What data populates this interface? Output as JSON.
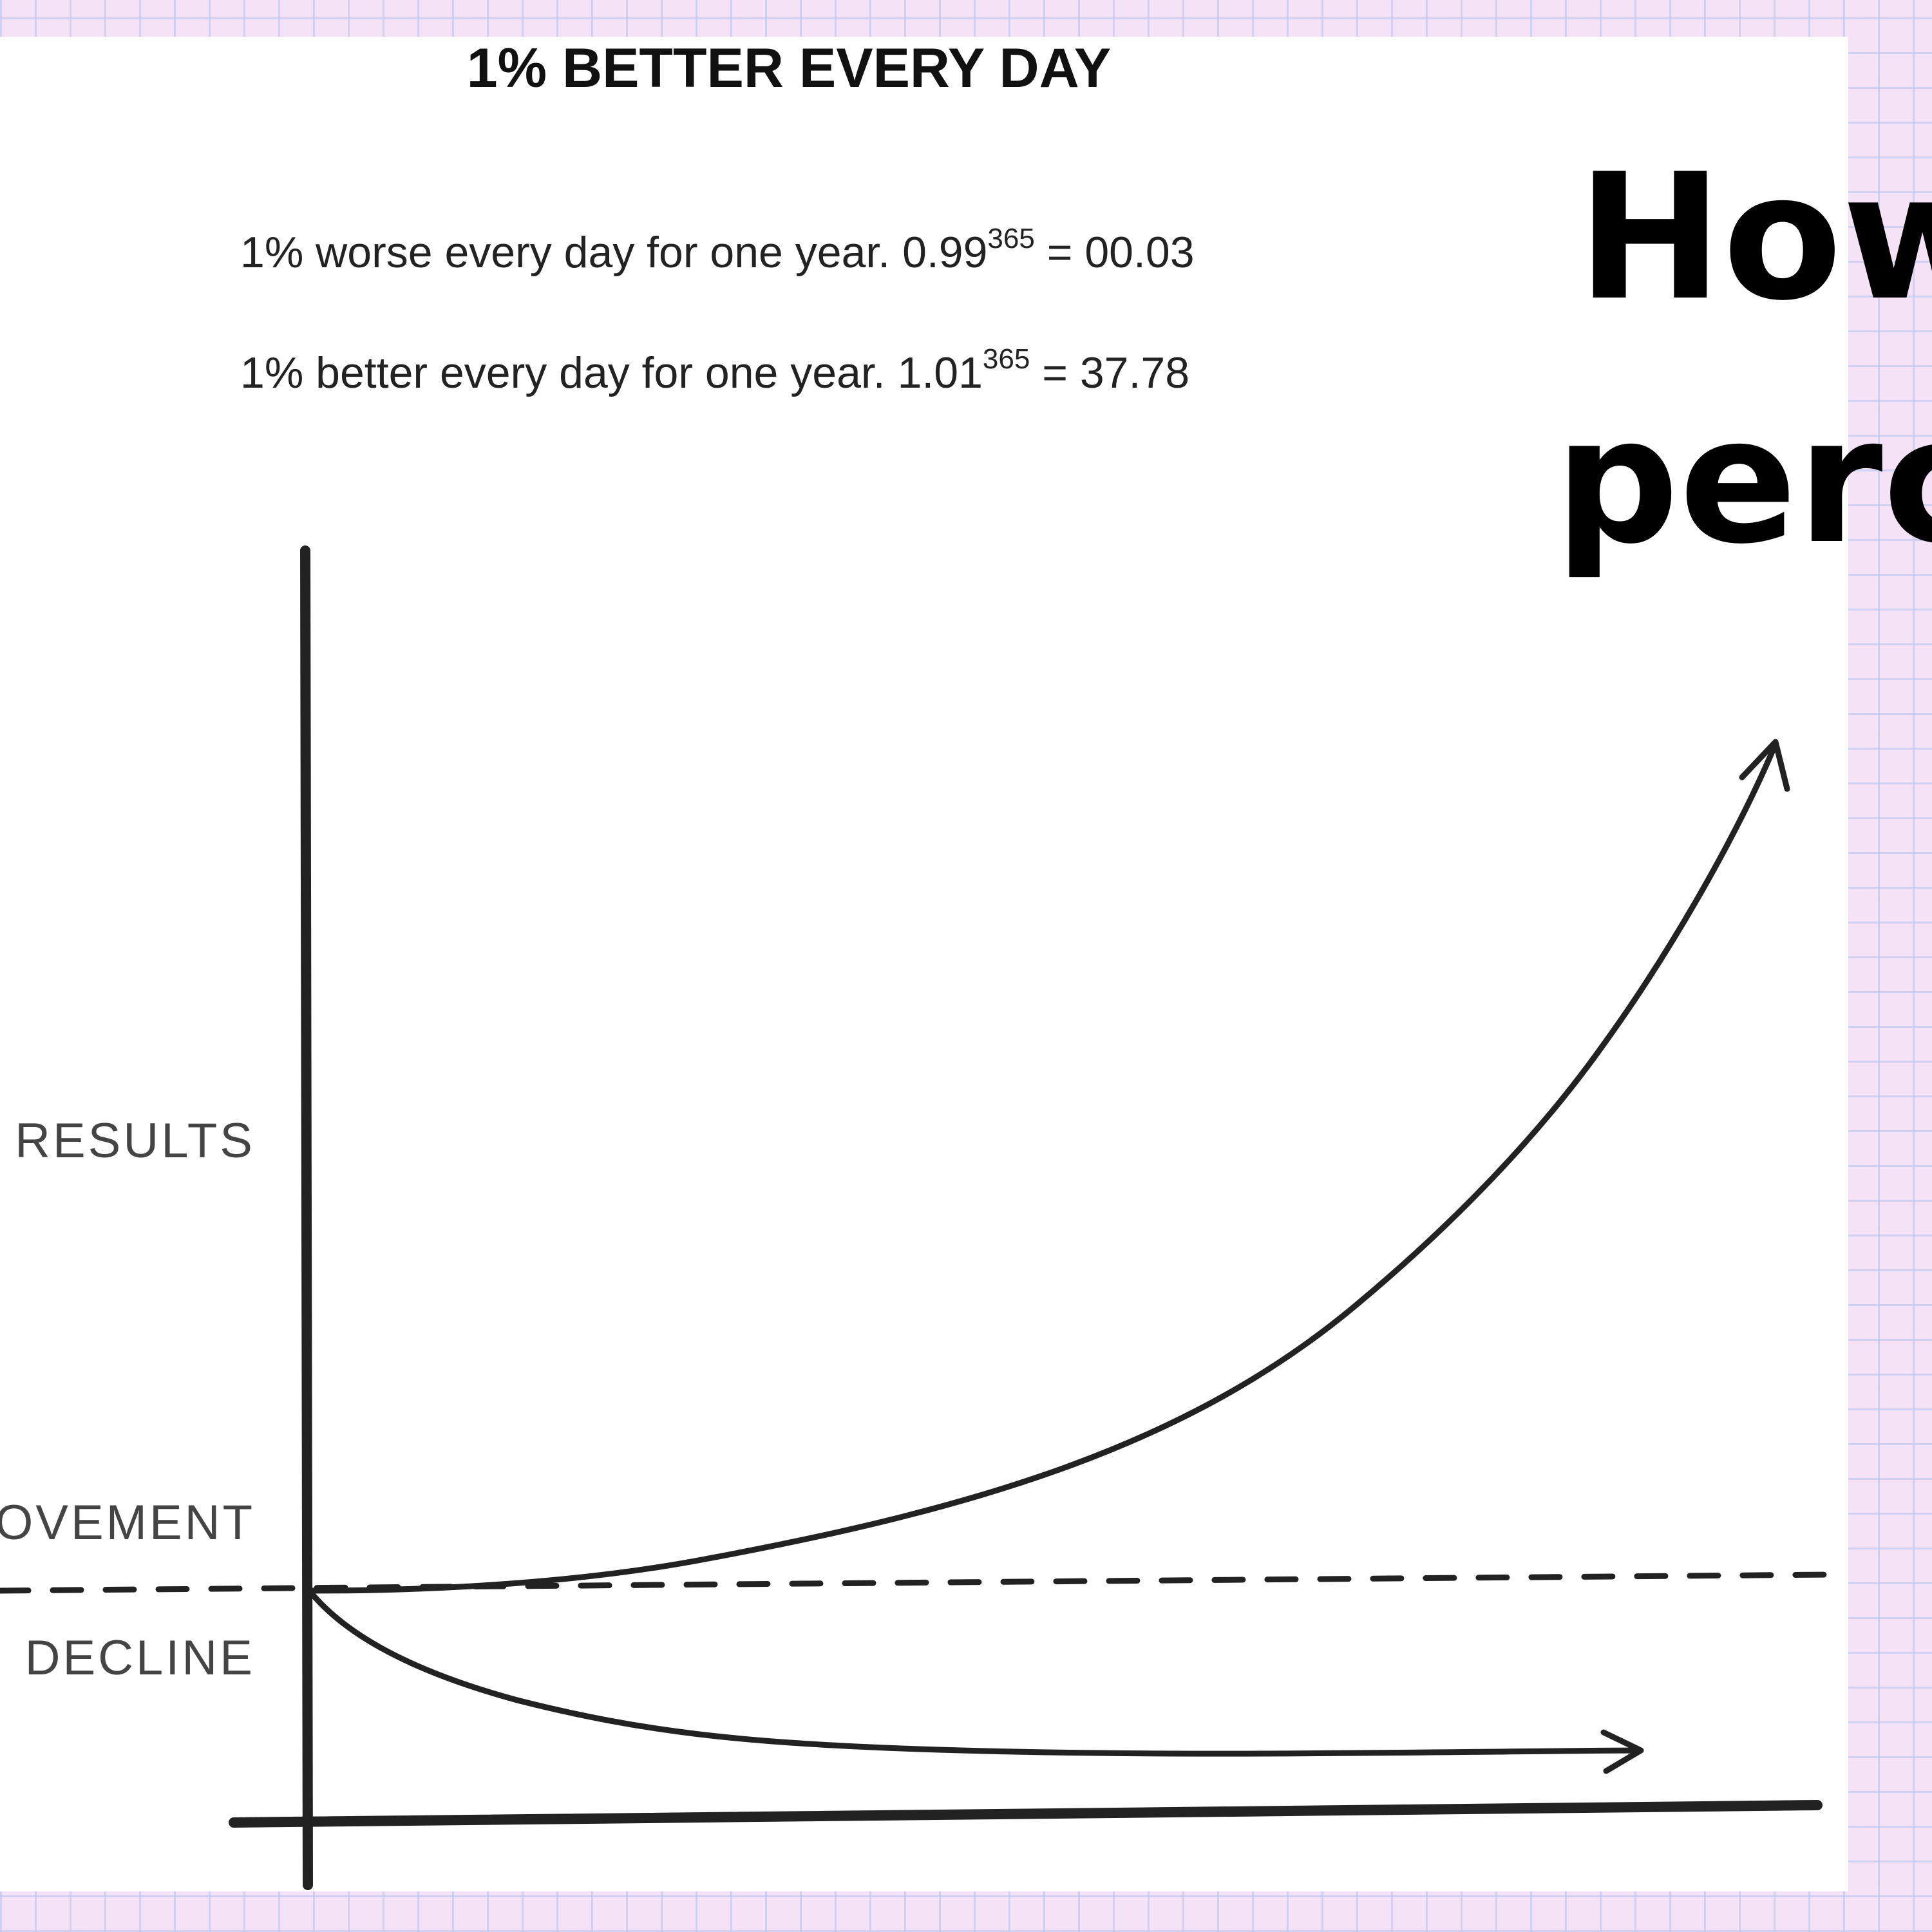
{
  "diagram": {
    "title": "1% BETTER EVERY DAY",
    "equations": [
      {
        "text": "1% worse every day for one year. 0.99",
        "exponent": "365",
        "result": " = 00.03"
      },
      {
        "text": "1% better every day for one year. 1.01",
        "exponent": "365",
        "result": " = 37.78"
      }
    ],
    "labels": {
      "results": "RESULTS",
      "improvement": "OVEMENT",
      "decline": "DECLINE"
    }
  },
  "heading": {
    "lines": [
      "How",
      "perc"
    ]
  }
}
